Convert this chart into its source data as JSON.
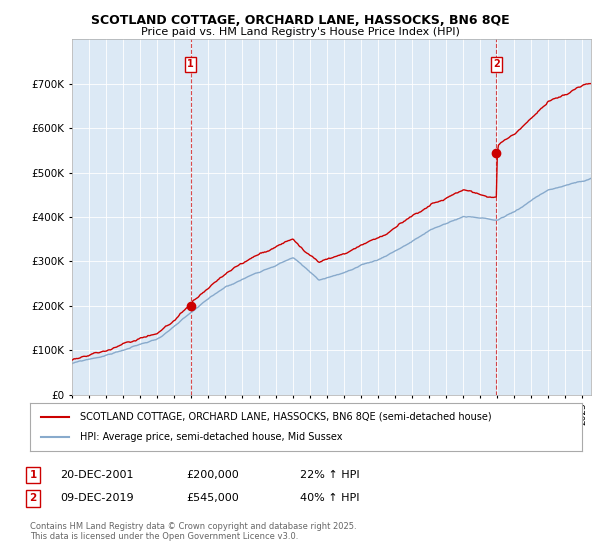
{
  "title": "SCOTLAND COTTAGE, ORCHARD LANE, HASSOCKS, BN6 8QE",
  "subtitle": "Price paid vs. HM Land Registry's House Price Index (HPI)",
  "legend_line1": "SCOTLAND COTTAGE, ORCHARD LANE, HASSOCKS, BN6 8QE (semi-detached house)",
  "legend_line2": "HPI: Average price, semi-detached house, Mid Sussex",
  "transaction1_date": "20-DEC-2001",
  "transaction1_price": "£200,000",
  "transaction1_hpi": "22% ↑ HPI",
  "transaction1_year": 2001.97,
  "transaction1_price_val": 200000,
  "transaction2_date": "09-DEC-2019",
  "transaction2_price": "£545,000",
  "transaction2_hpi": "40% ↑ HPI",
  "transaction2_year": 2019.94,
  "transaction2_price_val": 545000,
  "footer": "Contains HM Land Registry data © Crown copyright and database right 2025.\nThis data is licensed under the Open Government Licence v3.0.",
  "red_color": "#cc0000",
  "blue_color": "#88aacc",
  "plot_bg": "#dce9f5",
  "background_color": "#ffffff",
  "grid_color": "#ffffff",
  "ylim_max": 800000,
  "xstart": 1995.0,
  "xend": 2025.5
}
